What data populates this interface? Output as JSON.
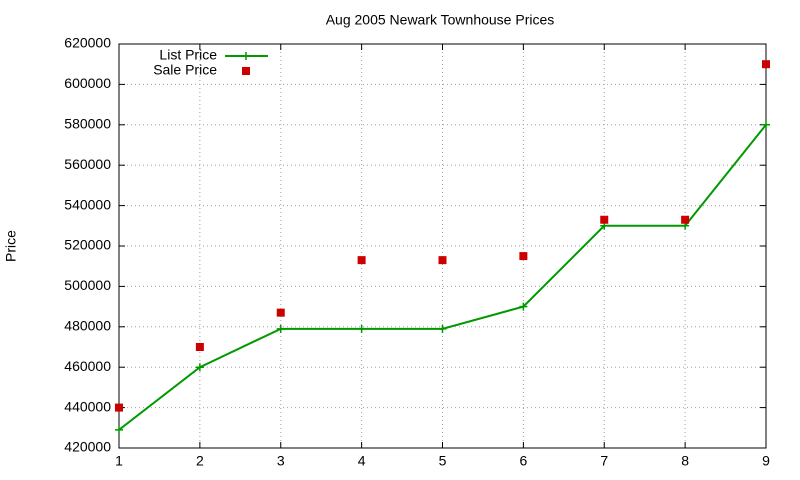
{
  "chart_data": {
    "type": "line",
    "title": "Aug 2005 Newark Townhouse Prices",
    "y_label": "Price",
    "x": [
      1,
      2,
      3,
      4,
      5,
      6,
      7,
      8,
      9
    ],
    "series": [
      {
        "name": "List Price",
        "color": "#009900",
        "style": "linespoints",
        "marker": "plus",
        "values": [
          429000,
          460000,
          479000,
          479000,
          479000,
          490000,
          530000,
          530000,
          580000
        ]
      },
      {
        "name": "Sale Price",
        "color": "#cc0000",
        "style": "points",
        "marker": "square",
        "values": [
          440000,
          470000,
          487000,
          513000,
          513000,
          515000,
          533000,
          533000,
          610000
        ]
      }
    ],
    "xlim": [
      1,
      9
    ],
    "xticks": [
      1,
      2,
      3,
      4,
      5,
      6,
      7,
      8,
      9
    ],
    "ylim": [
      420000,
      620000
    ],
    "yticks": [
      420000,
      440000,
      460000,
      480000,
      500000,
      520000,
      540000,
      560000,
      580000,
      600000,
      620000
    ],
    "grid": true,
    "legend": "top-left"
  }
}
